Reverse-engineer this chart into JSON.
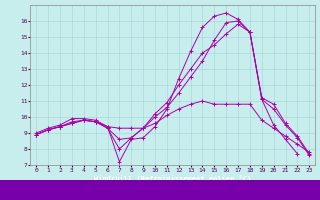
{
  "xlabel": "Windchill (Refroidissement éolien,°C)",
  "bg_color": "#c8eded",
  "grid_color": "#a8d8d8",
  "line_color": "#aa00aa",
  "xlim": [
    -0.5,
    23.5
  ],
  "ylim": [
    7,
    17
  ],
  "yticks": [
    7,
    8,
    9,
    10,
    11,
    12,
    13,
    14,
    15,
    16
  ],
  "xticks": [
    0,
    1,
    2,
    3,
    4,
    5,
    6,
    7,
    8,
    9,
    10,
    11,
    12,
    13,
    14,
    15,
    16,
    17,
    18,
    19,
    20,
    21,
    22,
    23
  ],
  "series": [
    {
      "x": [
        0,
        1,
        2,
        3,
        4,
        5,
        6,
        7,
        8,
        9,
        10,
        11,
        12,
        13,
        14,
        15,
        16,
        17,
        18,
        19,
        20,
        21,
        22
      ],
      "y": [
        9.0,
        9.3,
        9.5,
        9.9,
        9.9,
        9.8,
        9.4,
        7.2,
        8.6,
        8.7,
        9.4,
        10.5,
        12.4,
        14.1,
        15.6,
        16.3,
        16.5,
        16.1,
        15.3,
        11.1,
        9.5,
        8.6,
        7.7
      ]
    },
    {
      "x": [
        0,
        1,
        2,
        3,
        4,
        5,
        6,
        7,
        8,
        9,
        10,
        11,
        12,
        13,
        14,
        15,
        16,
        17,
        18,
        19,
        20,
        21,
        22,
        23
      ],
      "y": [
        8.9,
        9.2,
        9.4,
        9.6,
        9.8,
        9.7,
        9.3,
        8.6,
        8.7,
        9.3,
        10.0,
        10.6,
        11.5,
        12.5,
        13.5,
        14.8,
        15.9,
        16.0,
        15.3,
        11.1,
        10.5,
        9.5,
        8.7,
        7.6
      ]
    },
    {
      "x": [
        0,
        1,
        2,
        3,
        4,
        5,
        6,
        7,
        8,
        9,
        10,
        11,
        12,
        13,
        14,
        15,
        16,
        17,
        18,
        19,
        20,
        21,
        22,
        23
      ],
      "y": [
        8.9,
        9.2,
        9.4,
        9.6,
        9.8,
        9.7,
        9.3,
        8.0,
        8.7,
        9.3,
        10.2,
        10.9,
        12.0,
        13.0,
        14.0,
        14.5,
        15.2,
        15.8,
        15.3,
        11.2,
        10.8,
        9.6,
        8.8,
        7.7
      ]
    },
    {
      "x": [
        0,
        1,
        2,
        3,
        4,
        5,
        6,
        7,
        8,
        9,
        10,
        11,
        12,
        13,
        14,
        15,
        16,
        17,
        18,
        19,
        20,
        21,
        22,
        23
      ],
      "y": [
        8.9,
        9.2,
        9.4,
        9.7,
        9.8,
        9.7,
        9.4,
        9.3,
        9.3,
        9.3,
        9.6,
        10.1,
        10.5,
        10.8,
        11.0,
        10.8,
        10.8,
        10.8,
        10.8,
        9.8,
        9.3,
        8.8,
        8.3,
        7.8
      ]
    }
  ]
}
